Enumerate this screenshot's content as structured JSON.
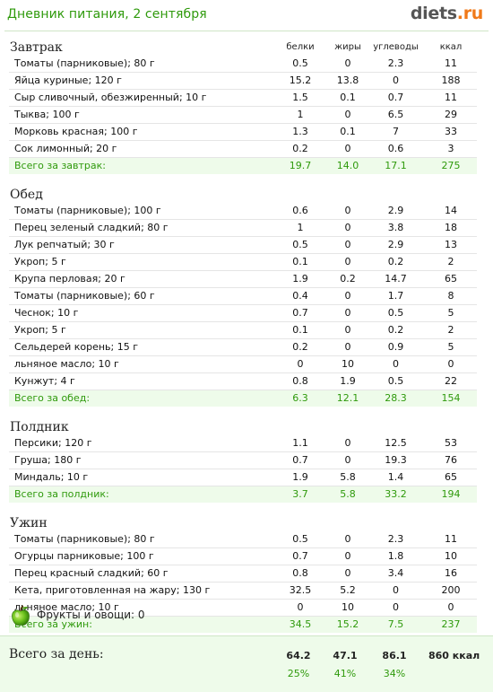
{
  "header": {
    "title": "Дневник питания, 2 сентября",
    "brand_main": "diets",
    "brand_tld": ".ru"
  },
  "columns": [
    "белки",
    "жиры",
    "углеводы",
    "ккал"
  ],
  "meals": [
    {
      "name": "Завтрак",
      "items": [
        {
          "name": "Томаты (парниковые); 80 г",
          "protein": "0.5",
          "fat": "0",
          "carbs": "2.3",
          "kcal": "11"
        },
        {
          "name": "Яйца куриные; 120 г",
          "protein": "15.2",
          "fat": "13.8",
          "carbs": "0",
          "kcal": "188"
        },
        {
          "name": "Сыр сливочный, обезжиренный; 10 г",
          "protein": "1.5",
          "fat": "0.1",
          "carbs": "0.7",
          "kcal": "11"
        },
        {
          "name": "Тыква; 100 г",
          "protein": "1",
          "fat": "0",
          "carbs": "6.5",
          "kcal": "29"
        },
        {
          "name": "Морковь красная; 100 г",
          "protein": "1.3",
          "fat": "0.1",
          "carbs": "7",
          "kcal": "33"
        },
        {
          "name": "Сок лимонный; 20 г",
          "protein": "0.2",
          "fat": "0",
          "carbs": "0.6",
          "kcal": "3"
        }
      ],
      "total": {
        "label": "Всего за завтрак:",
        "protein": "19.7",
        "fat": "14.0",
        "carbs": "17.1",
        "kcal": "275"
      }
    },
    {
      "name": "Обед",
      "items": [
        {
          "name": "Томаты (парниковые); 100 г",
          "protein": "0.6",
          "fat": "0",
          "carbs": "2.9",
          "kcal": "14"
        },
        {
          "name": "Перец зеленый сладкий; 80 г",
          "protein": "1",
          "fat": "0",
          "carbs": "3.8",
          "kcal": "18"
        },
        {
          "name": "Лук репчатый; 30 г",
          "protein": "0.5",
          "fat": "0",
          "carbs": "2.9",
          "kcal": "13"
        },
        {
          "name": "Укроп; 5 г",
          "protein": "0.1",
          "fat": "0",
          "carbs": "0.2",
          "kcal": "2"
        },
        {
          "name": "Крупа перловая; 20 г",
          "protein": "1.9",
          "fat": "0.2",
          "carbs": "14.7",
          "kcal": "65"
        },
        {
          "name": "Томаты (парниковые); 60 г",
          "protein": "0.4",
          "fat": "0",
          "carbs": "1.7",
          "kcal": "8"
        },
        {
          "name": "Чеснок; 10 г",
          "protein": "0.7",
          "fat": "0",
          "carbs": "0.5",
          "kcal": "5"
        },
        {
          "name": "Укроп; 5 г",
          "protein": "0.1",
          "fat": "0",
          "carbs": "0.2",
          "kcal": "2"
        },
        {
          "name": "Сельдерей корень; 15 г",
          "protein": "0.2",
          "fat": "0",
          "carbs": "0.9",
          "kcal": "5"
        },
        {
          "name": "льняное масло; 10 г",
          "protein": "0",
          "fat": "10",
          "carbs": "0",
          "kcal": "0"
        },
        {
          "name": "Кунжут; 4 г",
          "protein": "0.8",
          "fat": "1.9",
          "carbs": "0.5",
          "kcal": "22"
        }
      ],
      "total": {
        "label": "Всего за обед:",
        "protein": "6.3",
        "fat": "12.1",
        "carbs": "28.3",
        "kcal": "154"
      }
    },
    {
      "name": "Полдник",
      "items": [
        {
          "name": "Персики; 120 г",
          "protein": "1.1",
          "fat": "0",
          "carbs": "12.5",
          "kcal": "53"
        },
        {
          "name": "Груша; 180 г",
          "protein": "0.7",
          "fat": "0",
          "carbs": "19.3",
          "kcal": "76"
        },
        {
          "name": "Миндаль; 10 г",
          "protein": "1.9",
          "fat": "5.8",
          "carbs": "1.4",
          "kcal": "65"
        }
      ],
      "total": {
        "label": "Всего за полдник:",
        "protein": "3.7",
        "fat": "5.8",
        "carbs": "33.2",
        "kcal": "194"
      }
    },
    {
      "name": "Ужин",
      "items": [
        {
          "name": "Томаты (парниковые); 80 г",
          "protein": "0.5",
          "fat": "0",
          "carbs": "2.3",
          "kcal": "11"
        },
        {
          "name": "Огурцы парниковые; 100 г",
          "protein": "0.7",
          "fat": "0",
          "carbs": "1.8",
          "kcal": "10"
        },
        {
          "name": "Перец красный сладкий; 60 г",
          "protein": "0.8",
          "fat": "0",
          "carbs": "3.4",
          "kcal": "16"
        },
        {
          "name": "Кета, приготовленная на жару; 130 г",
          "protein": "32.5",
          "fat": "5.2",
          "carbs": "0",
          "kcal": "200"
        },
        {
          "name": "льняное масло; 10 г",
          "protein": "0",
          "fat": "10",
          "carbs": "0",
          "kcal": "0"
        }
      ],
      "total": {
        "label": "Всего за ужин:",
        "protein": "34.5",
        "fat": "15.2",
        "carbs": "7.5",
        "kcal": "237"
      }
    }
  ],
  "fruits": {
    "icon": "apple-icon",
    "text": "Фрукты и овощи: 0"
  },
  "day_total": {
    "label": "Всего за день:",
    "protein": "64.2",
    "fat": "47.1",
    "carbs": "86.1",
    "kcal": "860 ккал",
    "protein_pct": "25%",
    "fat_pct": "41%",
    "carbs_pct": "34%"
  },
  "colors": {
    "accent_green": "#2f9a0c",
    "total_bg": "#eefbea",
    "brand_orange": "#f07a1a"
  }
}
